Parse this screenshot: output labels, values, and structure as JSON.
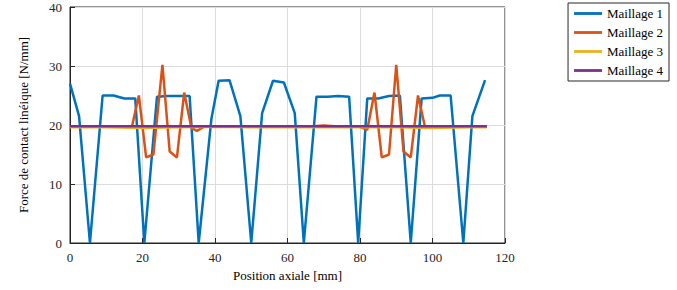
{
  "chart_data": {
    "type": "line",
    "x_label": "Position axiale [mm]",
    "y_label": "Force de contact linéique [N/mm]",
    "xlim": [
      0,
      120
    ],
    "xticks": [
      0,
      20,
      40,
      60,
      80,
      100,
      120
    ],
    "ylim": [
      0,
      40
    ],
    "yticks": [
      0,
      10,
      20,
      30,
      40
    ],
    "grid": true,
    "legend": "right",
    "series": [
      {
        "name": "Maillage 1",
        "color": "#0072bd",
        "x": [
          0,
          2.5,
          5.5,
          9,
          12,
          15,
          18,
          20.5,
          24,
          27,
          30,
          33,
          35.5,
          39,
          41,
          44,
          47,
          50,
          53,
          56,
          59,
          62,
          64.5,
          68,
          71,
          74,
          77,
          79.5,
          82,
          85,
          88,
          91,
          94,
          97,
          100,
          102,
          105,
          108.5,
          111,
          114.5
        ],
        "values": [
          27,
          21.5,
          0,
          25,
          25,
          24.5,
          24.5,
          0,
          24.8,
          24.9,
          24.9,
          24.9,
          0,
          21,
          27.5,
          27.6,
          21.5,
          0,
          22,
          27.5,
          27.2,
          22,
          0,
          24.8,
          24.8,
          24.9,
          24.8,
          0,
          24.5,
          24.5,
          24.9,
          25,
          0,
          24.5,
          24.6,
          25,
          25,
          0,
          21.5,
          27.6
        ]
      },
      {
        "name": "Maillage 2",
        "color": "#d95319",
        "x": [
          0,
          5,
          10,
          15,
          17,
          19,
          21,
          23,
          25.5,
          27.5,
          29.5,
          31.5,
          33.5,
          35,
          37,
          45,
          55,
          65,
          70,
          75,
          80,
          82,
          84,
          86,
          88,
          90,
          92,
          94,
          96,
          98,
          100,
          108,
          115
        ],
        "values": [
          19.7,
          19.7,
          19.7,
          19.7,
          19.5,
          25,
          14.5,
          15,
          30.2,
          15.5,
          14.5,
          25.5,
          19.5,
          19,
          19.7,
          19.7,
          19.7,
          19.7,
          19.9,
          19.7,
          19.7,
          19.2,
          25.5,
          14.5,
          15,
          30.2,
          15.5,
          14.5,
          25,
          19.5,
          19.7,
          19.7,
          19.7
        ]
      },
      {
        "name": "Maillage 3",
        "color": "#edb120",
        "x": [
          0,
          10,
          20,
          30,
          40,
          50,
          60,
          70,
          80,
          90,
          100,
          110,
          115
        ],
        "values": [
          19.6,
          19.6,
          19.5,
          19.6,
          19.7,
          19.6,
          19.6,
          19.6,
          19.6,
          19.6,
          19.5,
          19.6,
          19.6
        ]
      },
      {
        "name": "Maillage 4",
        "color": "#7e2f8e",
        "x": [
          0,
          10,
          20,
          30,
          40,
          50,
          60,
          70,
          80,
          90,
          100,
          110,
          115
        ],
        "values": [
          19.8,
          19.8,
          19.8,
          19.8,
          19.8,
          19.8,
          19.8,
          19.8,
          19.8,
          19.8,
          19.8,
          19.8,
          19.8
        ]
      }
    ]
  }
}
